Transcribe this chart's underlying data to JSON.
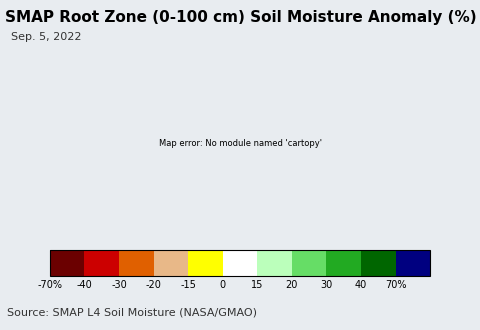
{
  "title": "SMAP Root Zone (0-100 cm) Soil Moisture Anomaly (%)",
  "subtitle": "Sep. 5, 2022",
  "source_text": "Source: SMAP L4 Soil Moisture (NASA/GMAO)",
  "colorbar_values": [
    -70,
    -40,
    -30,
    -20,
    -15,
    0,
    15,
    20,
    30,
    40,
    70
  ],
  "colorbar_labels": [
    "-70%",
    "-40",
    "-30",
    "-20",
    "-15",
    "0",
    "15",
    "20",
    "30",
    "40",
    "70%"
  ],
  "colorbar_colors": [
    "#6B0000",
    "#CC0000",
    "#E06000",
    "#E8B888",
    "#FFFF00",
    "#FFFFFF",
    "#BBFFBB",
    "#66DD66",
    "#22AA22",
    "#006600",
    "#000080"
  ],
  "land_color": "#F0EEE8",
  "ocean_color": "#AADDEE",
  "state_edge_color": "#888888",
  "border_edge_color": "#000000",
  "fig_bg_color": "#E8ECF0",
  "title_fontsize": 11,
  "subtitle_fontsize": 8,
  "source_fontsize": 8,
  "fig_width": 4.8,
  "fig_height": 3.3,
  "dpi": 100,
  "map_extent": [
    -125,
    -66.5,
    24,
    50
  ],
  "central_longitude": -96,
  "central_latitude": 39
}
